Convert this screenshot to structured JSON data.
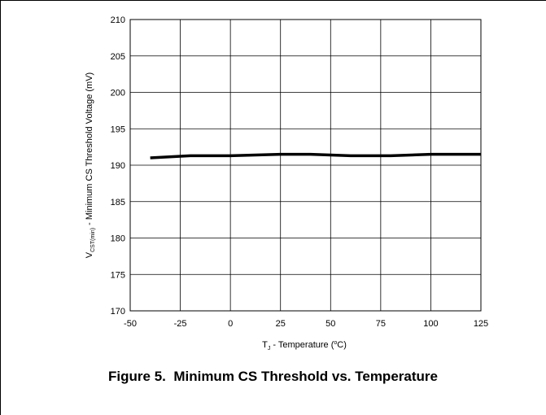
{
  "caption": "Figure 5.  Minimum CS Threshold vs. Temperature",
  "chart_data": {
    "type": "line",
    "title": "",
    "xlabel": {
      "main": "T",
      "sub": "J",
      "rest": " - Temperature  (",
      "sup": "o",
      "end": "C)"
    },
    "ylabel": {
      "main": "V",
      "sub": "CST(min)",
      "rest": " - Minimum CS Threshold Voltage  (mV)"
    },
    "xlim": [
      -50,
      125
    ],
    "ylim": [
      170,
      210
    ],
    "xticks": [
      -50,
      -25,
      0,
      25,
      50,
      75,
      100,
      125
    ],
    "yticks": [
      170,
      175,
      180,
      185,
      190,
      195,
      200,
      205,
      210
    ],
    "grid": true,
    "line_color": "#000000",
    "series": [
      {
        "x": [
          -40,
          -20,
          0,
          25,
          40,
          60,
          80,
          100,
          125
        ],
        "values": [
          191.0,
          191.3,
          191.3,
          191.5,
          191.5,
          191.3,
          191.3,
          191.5,
          191.5
        ]
      }
    ]
  }
}
